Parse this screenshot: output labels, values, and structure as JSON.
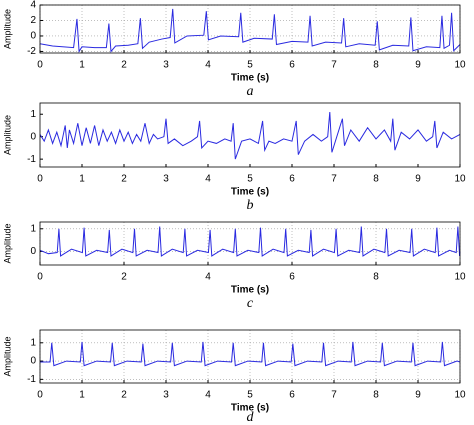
{
  "chart_data": [
    {
      "type": "line",
      "caption": "a",
      "x_label": "Time (s)",
      "y_label": "Amplitude",
      "x": [
        0,
        0.3,
        0.8,
        0.88,
        0.93,
        1.0,
        1.3,
        1.58,
        1.64,
        1.69,
        1.8,
        2.1,
        2.33,
        2.39,
        2.44,
        2.6,
        2.9,
        3.1,
        3.16,
        3.21,
        3.5,
        3.9,
        3.96,
        4.01,
        4.3,
        4.73,
        4.78,
        4.83,
        5.1,
        5.53,
        5.58,
        5.63,
        6.0,
        6.38,
        6.43,
        6.48,
        6.8,
        7.18,
        7.23,
        7.28,
        7.6,
        7.98,
        8.03,
        8.08,
        8.4,
        8.78,
        8.83,
        8.88,
        9.2,
        9.52,
        9.57,
        9.62,
        9.75,
        9.8,
        9.85,
        10
      ],
      "series": [
        {
          "color": "#2a2ae0",
          "values": [
            -1.0,
            -1.3,
            -1.5,
            2.2,
            -2.0,
            -1.4,
            -1.5,
            -1.5,
            1.6,
            -2.0,
            -1.3,
            -1.2,
            -1.0,
            2.3,
            -1.6,
            -0.8,
            -0.4,
            -0.2,
            3.5,
            -0.9,
            0.0,
            0.1,
            3.2,
            -0.5,
            0.0,
            -0.1,
            3.0,
            -0.8,
            -0.3,
            -0.4,
            2.8,
            -1.1,
            -0.7,
            -0.8,
            2.6,
            -1.3,
            -0.8,
            -0.9,
            2.3,
            -1.4,
            -1.0,
            -1.2,
            1.9,
            -1.8,
            -1.2,
            -1.3,
            2.4,
            -1.9,
            -1.4,
            -1.5,
            2.6,
            -1.6,
            -1.2,
            3.0,
            -1.9,
            -1.1
          ]
        }
      ],
      "xlim": [
        0,
        10
      ],
      "ylim": [
        -2.2,
        4
      ],
      "xticks": [
        0,
        1,
        2,
        3,
        4,
        5,
        6,
        7,
        8,
        9,
        10
      ],
      "yticks": [
        -2,
        0,
        2,
        4
      ],
      "grid": true
    },
    {
      "type": "line",
      "caption": "b",
      "x_label": "Time (s)",
      "y_label": "Amplitude",
      "x": [
        0,
        0.1,
        0.2,
        0.3,
        0.4,
        0.5,
        0.6,
        0.65,
        0.7,
        0.8,
        0.9,
        1.0,
        1.1,
        1.2,
        1.3,
        1.4,
        1.5,
        1.6,
        1.7,
        1.8,
        1.9,
        2.0,
        2.1,
        2.2,
        2.3,
        2.4,
        2.5,
        2.6,
        2.7,
        2.8,
        2.95,
        3.0,
        3.05,
        3.2,
        3.4,
        3.6,
        3.75,
        3.8,
        3.85,
        4.0,
        4.2,
        4.4,
        4.55,
        4.6,
        4.65,
        4.8,
        5.0,
        5.2,
        5.3,
        5.35,
        5.45,
        5.6,
        5.8,
        6.0,
        6.1,
        6.15,
        6.3,
        6.5,
        6.7,
        6.85,
        6.9,
        6.95,
        7.1,
        7.2,
        7.25,
        7.4,
        7.6,
        7.8,
        8.0,
        8.2,
        8.35,
        8.4,
        8.45,
        8.6,
        8.8,
        9.0,
        9.2,
        9.35,
        9.4,
        9.45,
        9.6,
        9.8,
        10
      ],
      "series": [
        {
          "color": "#2a2ae0",
          "values": [
            0.1,
            -0.2,
            0.3,
            -0.3,
            0.2,
            -0.4,
            0.5,
            -0.5,
            0.3,
            -0.3,
            0.6,
            -0.4,
            0.4,
            -0.3,
            0.5,
            -0.4,
            0.3,
            -0.2,
            0.2,
            -0.3,
            0.3,
            -0.2,
            0.2,
            -0.3,
            0.1,
            -0.2,
            0.6,
            -0.3,
            0.1,
            -0.1,
            0.0,
            0.8,
            -0.3,
            -0.1,
            -0.4,
            -0.2,
            0.0,
            0.7,
            -0.5,
            -0.2,
            -0.3,
            -0.1,
            -0.2,
            0.6,
            -1.0,
            -0.2,
            -0.1,
            -0.3,
            0.7,
            -0.6,
            -0.2,
            -0.3,
            -0.1,
            -0.2,
            0.7,
            -0.8,
            -0.2,
            0.1,
            -0.2,
            0.0,
            1.1,
            -0.7,
            0.2,
            0.8,
            -0.4,
            0.3,
            -0.2,
            0.4,
            -0.1,
            0.3,
            -0.2,
            0.8,
            -0.6,
            0.2,
            -0.1,
            0.3,
            -0.2,
            0.0,
            0.7,
            -0.5,
            0.2,
            -0.1,
            0.1
          ]
        }
      ],
      "xlim": [
        0,
        10
      ],
      "ylim": [
        -1.35,
        1.5
      ],
      "xticks": [
        0,
        1,
        2,
        3,
        4,
        5,
        6,
        7,
        8,
        9,
        10
      ],
      "yticks": [
        -1,
        0,
        1
      ],
      "grid": false
    },
    {
      "type": "line",
      "caption": "c",
      "x_label": "Time (s)",
      "y_label": "Amplitude",
      "x": [
        0,
        0.2,
        0.41,
        0.45,
        0.49,
        0.75,
        1.01,
        1.05,
        1.09,
        1.35,
        1.61,
        1.65,
        1.69,
        1.95,
        2.21,
        2.25,
        2.29,
        2.55,
        2.81,
        2.85,
        2.89,
        3.15,
        3.41,
        3.45,
        3.49,
        3.75,
        4.01,
        4.05,
        4.09,
        4.35,
        4.61,
        4.65,
        4.69,
        4.95,
        5.21,
        5.25,
        5.29,
        5.55,
        5.81,
        5.85,
        5.89,
        6.15,
        6.41,
        6.45,
        6.49,
        6.75,
        7.01,
        7.05,
        7.09,
        7.35,
        7.61,
        7.65,
        7.69,
        7.95,
        8.21,
        8.25,
        8.29,
        8.55,
        8.81,
        8.85,
        8.89,
        9.15,
        9.41,
        9.45,
        9.49,
        9.75,
        9.91,
        9.95,
        9.99,
        10
      ],
      "series": [
        {
          "color": "#2a2ae0",
          "values": [
            0.05,
            -0.1,
            -0.05,
            1.0,
            -0.2,
            0.1,
            -0.05,
            1.05,
            -0.2,
            0.05,
            -0.05,
            0.95,
            -0.2,
            0.1,
            -0.05,
            1.0,
            -0.2,
            0.05,
            -0.05,
            1.1,
            -0.2,
            0.1,
            -0.05,
            1.0,
            -0.2,
            0.05,
            -0.05,
            0.95,
            -0.2,
            0.1,
            -0.05,
            1.0,
            -0.2,
            0.05,
            -0.05,
            1.05,
            -0.2,
            0.1,
            -0.05,
            1.0,
            -0.2,
            0.05,
            -0.05,
            0.95,
            -0.2,
            0.1,
            -0.05,
            1.0,
            -0.2,
            0.05,
            -0.05,
            1.1,
            -0.2,
            0.1,
            -0.05,
            1.0,
            -0.2,
            0.05,
            -0.05,
            1.0,
            -0.2,
            0.1,
            -0.05,
            1.05,
            -0.2,
            0.05,
            -0.05,
            1.1,
            -0.2,
            0.0
          ]
        }
      ],
      "xlim": [
        0,
        10
      ],
      "ylim": [
        -0.6,
        1.3
      ],
      "xticks": [
        0,
        2,
        4,
        6,
        8,
        10
      ],
      "yticks": [
        0,
        1
      ],
      "grid": true
    },
    {
      "type": "line",
      "caption": "d",
      "x_label": "Time (s)",
      "y_label": "Amplitude",
      "x": [
        0,
        0.24,
        0.28,
        0.33,
        0.63,
        0.96,
        1.0,
        1.05,
        1.35,
        1.68,
        1.72,
        1.77,
        2.07,
        2.41,
        2.45,
        2.5,
        2.8,
        3.11,
        3.15,
        3.2,
        3.5,
        3.84,
        3.88,
        3.93,
        4.23,
        4.56,
        4.6,
        4.65,
        4.95,
        5.28,
        5.32,
        5.37,
        5.67,
        5.98,
        6.02,
        6.07,
        6.37,
        6.71,
        6.75,
        6.8,
        7.1,
        7.41,
        7.45,
        7.5,
        7.8,
        8.11,
        8.15,
        8.2,
        8.5,
        8.84,
        8.88,
        8.93,
        9.23,
        9.54,
        9.58,
        9.63,
        9.93,
        10
      ],
      "series": [
        {
          "color": "#2a2ae0",
          "values": [
            -0.05,
            -0.05,
            1.0,
            -0.25,
            0.0,
            -0.05,
            1.05,
            -0.25,
            0.0,
            -0.05,
            1.0,
            -0.25,
            0.0,
            -0.05,
            0.95,
            -0.25,
            0.0,
            -0.05,
            1.0,
            -0.25,
            0.0,
            -0.05,
            1.05,
            -0.25,
            0.0,
            -0.05,
            1.0,
            -0.25,
            0.0,
            -0.05,
            1.0,
            -0.25,
            0.0,
            -0.05,
            0.95,
            -0.25,
            0.0,
            -0.05,
            1.0,
            -0.25,
            0.0,
            -0.05,
            1.05,
            -0.25,
            0.0,
            -0.05,
            1.0,
            -0.25,
            0.0,
            -0.05,
            1.0,
            -0.25,
            0.0,
            -0.05,
            1.05,
            -0.25,
            0.0,
            -0.05
          ]
        }
      ],
      "xlim": [
        0,
        10
      ],
      "ylim": [
        -1.2,
        1.7
      ],
      "xticks": [
        0,
        1,
        2,
        3,
        4,
        5,
        6,
        7,
        8,
        9,
        10
      ],
      "yticks": [
        -1,
        0,
        1
      ],
      "grid": true
    }
  ]
}
